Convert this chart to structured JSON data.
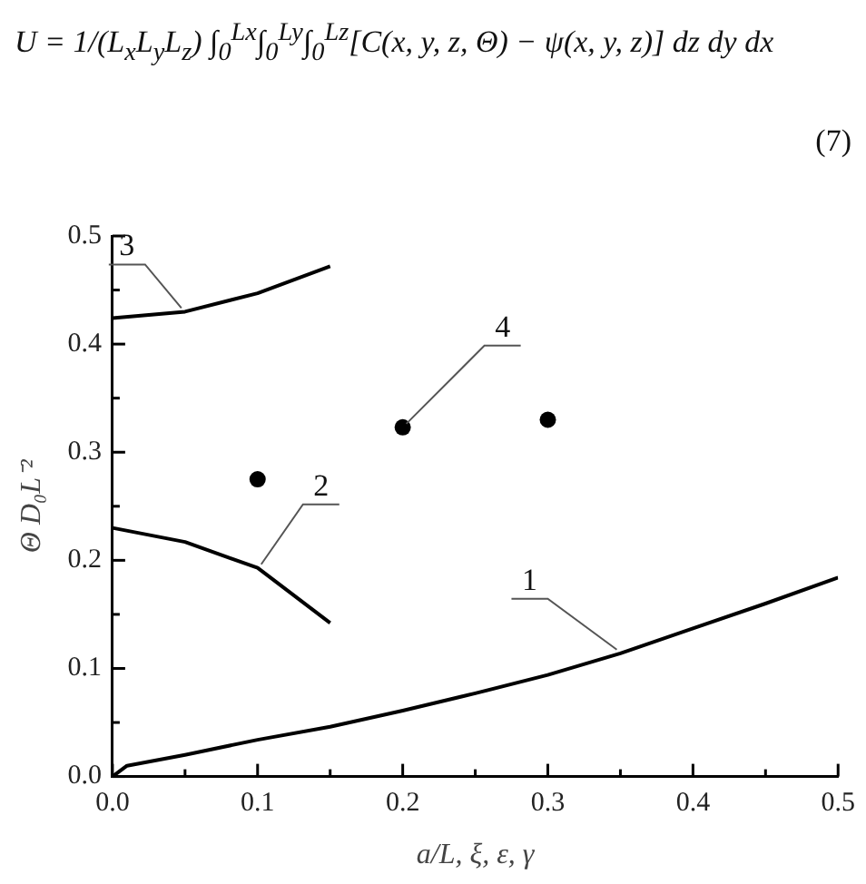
{
  "chart_data": {
    "type": "line",
    "xlabel": "a/L, ξ, ε, γ",
    "ylabel": "Θ D₀L⁻²",
    "annotations": [
      "U = 1/(L$_{x}$L$_{y}$L$_{z}$) ∫$_{0}$$^{Lx}$∫$_{0}$$^{Ly}$∫$_{0}$$^{Lz}$[C(x, y, z, Θ) − ψ(x, y, z)] dz dy dx",
      "(7)"
    ],
    "xlim": [
      0,
      0.5
    ],
    "ylim": [
      0,
      0.5
    ],
    "xticks": [
      {
        "value": 0,
        "label": "0.0"
      },
      {
        "value": 0.05,
        "label": null
      },
      0.1,
      {
        "value": 0.15,
        "label": null
      },
      0.2,
      {
        "value": 0.25,
        "label": null
      },
      0.3,
      {
        "value": 0.35,
        "label": null
      },
      0.4,
      {
        "value": 0.45,
        "label": null
      },
      0.5
    ],
    "yticks": [
      {
        "value": 0,
        "label": "0.0"
      },
      {
        "value": 0.05,
        "label": null
      },
      0.1,
      {
        "value": 0.15,
        "label": null
      },
      0.2,
      {
        "value": 0.25,
        "label": null
      },
      0.3,
      {
        "value": 0.35,
        "label": null
      },
      0.4,
      {
        "value": 0.45,
        "label": null
      },
      0.5
    ],
    "grid": false,
    "legend": false,
    "series": [
      {
        "name": "1",
        "color": "#000000",
        "x": [
          0,
          0.01,
          0.05,
          0.1,
          0.15,
          0.2,
          0.25,
          0.3,
          0.35,
          0.4,
          0.45,
          0.5
        ],
        "values": [
          0,
          0.01,
          0.02,
          0.034,
          0.046,
          0.061,
          0.077,
          0.094,
          0.114,
          0.137,
          0.16,
          0.184
        ]
      },
      {
        "name": "2",
        "color": "#000000",
        "x": [
          0,
          0.05,
          0.1,
          0.15
        ],
        "values": [
          0.23,
          0.217,
          0.193,
          0.142
        ]
      },
      {
        "name": "3",
        "color": "#000000",
        "x": [
          0,
          0.05,
          0.1,
          0.15
        ],
        "values": [
          0.424,
          0.43,
          0.447,
          0.472
        ]
      },
      {
        "name": "4",
        "type": "scatter",
        "marker": "circle",
        "color": "#000000",
        "x": [
          0.1,
          0.2,
          0.3
        ],
        "values": [
          0.275,
          0.323,
          0.33
        ]
      }
    ]
  }
}
